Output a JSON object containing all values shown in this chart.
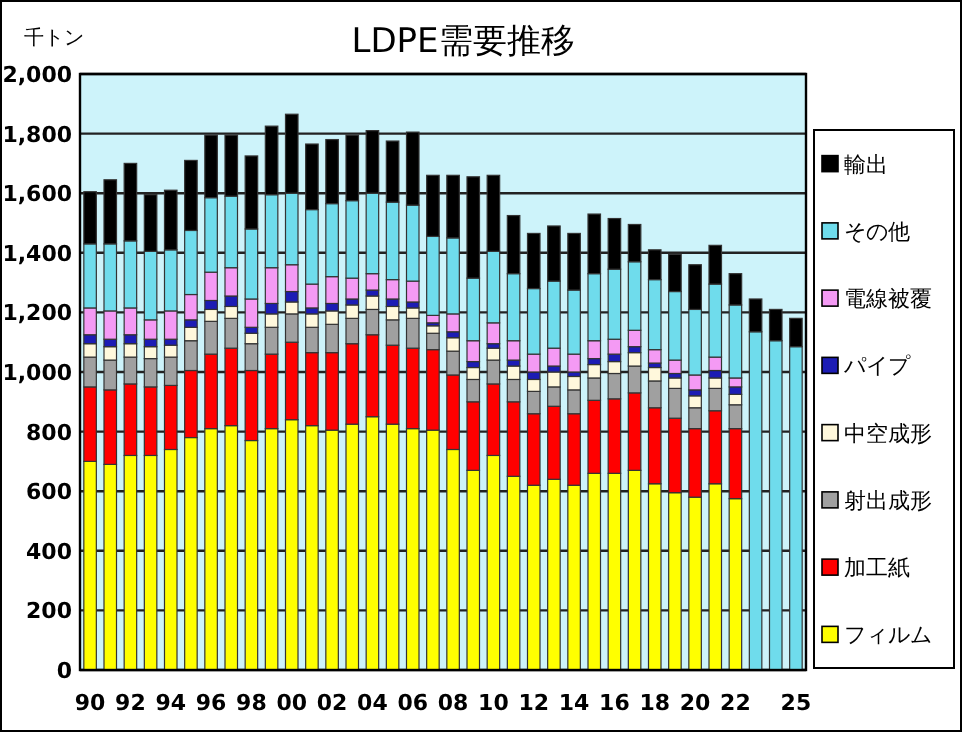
{
  "chart_data": {
    "type": "bar",
    "stacked": true,
    "title": "LDPE需要推移",
    "ylabel": "千トン",
    "categories": [
      "90",
      null,
      "92",
      null,
      "94",
      null,
      "96",
      null,
      "98",
      null,
      "00",
      null,
      "02",
      null,
      "04",
      null,
      "06",
      null,
      "08",
      null,
      "10",
      null,
      "12",
      null,
      "14",
      null,
      "16",
      null,
      "18",
      null,
      "20",
      null,
      "22",
      null,
      null,
      "25"
    ],
    "ylim": [
      0,
      2000
    ],
    "yticks": [
      {
        "value": 0,
        "label": "0"
      },
      {
        "value": 200,
        "label": "200"
      },
      {
        "value": 400,
        "label": "400"
      },
      {
        "value": 600,
        "label": "600"
      },
      {
        "value": 800,
        "label": "800"
      },
      {
        "value": 1000,
        "label": "1,000"
      },
      {
        "value": 1200,
        "label": "1,200"
      },
      {
        "value": 1400,
        "label": "1,400"
      },
      {
        "value": 1600,
        "label": "1,600"
      },
      {
        "value": 1800,
        "label": "1,800"
      },
      {
        "value": 2000,
        "label": "2,000"
      }
    ],
    "grid": "y",
    "legend": "right",
    "series": [
      {
        "name": "フィルム",
        "color": "#ffff00",
        "values": [
          700,
          690,
          720,
          720,
          740,
          780,
          810,
          820,
          770,
          810,
          840,
          820,
          805,
          825,
          850,
          825,
          810,
          805,
          740,
          670,
          720,
          650,
          620,
          640,
          620,
          660,
          660,
          670,
          625,
          595,
          580,
          625,
          575,
          null,
          null,
          null
        ]
      },
      {
        "name": "加工紙",
        "color": "#ff0000",
        "values": [
          250,
          250,
          240,
          230,
          215,
          225,
          250,
          260,
          235,
          250,
          260,
          245,
          260,
          270,
          275,
          265,
          270,
          270,
          250,
          230,
          240,
          250,
          240,
          245,
          240,
          245,
          250,
          260,
          255,
          250,
          230,
          245,
          235,
          null,
          null,
          null
        ]
      },
      {
        "name": "射出成形",
        "color": "#a0a0a0",
        "values": [
          100,
          100,
          90,
          95,
          95,
          100,
          110,
          100,
          90,
          90,
          95,
          85,
          95,
          85,
          85,
          85,
          100,
          55,
          80,
          75,
          80,
          75,
          75,
          65,
          80,
          75,
          85,
          90,
          90,
          100,
          70,
          75,
          80,
          null,
          null,
          null
        ]
      },
      {
        "name": "中空成形",
        "color": "#fff8dc",
        "values": [
          45,
          45,
          45,
          40,
          40,
          45,
          40,
          40,
          35,
          45,
          40,
          45,
          45,
          45,
          45,
          45,
          35,
          25,
          45,
          40,
          40,
          45,
          40,
          50,
          45,
          45,
          40,
          45,
          45,
          35,
          40,
          35,
          35,
          null,
          null,
          null
        ]
      },
      {
        "name": "パイプ",
        "color": "#1c1cb4",
        "values": [
          30,
          25,
          30,
          25,
          20,
          25,
          30,
          35,
          20,
          35,
          35,
          20,
          25,
          20,
          20,
          25,
          20,
          10,
          20,
          20,
          15,
          20,
          25,
          20,
          15,
          20,
          25,
          20,
          15,
          15,
          20,
          25,
          25,
          null,
          null,
          null
        ]
      },
      {
        "name": "電線被覆",
        "color": "#f49af4",
        "values": [
          90,
          95,
          90,
          65,
          95,
          85,
          95,
          95,
          95,
          120,
          90,
          80,
          90,
          70,
          55,
          65,
          70,
          25,
          60,
          70,
          70,
          65,
          60,
          60,
          60,
          60,
          50,
          55,
          45,
          45,
          50,
          45,
          30,
          null,
          null,
          null
        ]
      },
      {
        "name": "その他",
        "color": "#6fdcec",
        "values": [
          215,
          225,
          225,
          230,
          205,
          215,
          250,
          240,
          235,
          245,
          240,
          250,
          245,
          260,
          270,
          260,
          255,
          265,
          255,
          210,
          240,
          225,
          220,
          225,
          215,
          225,
          235,
          230,
          235,
          230,
          220,
          245,
          245,
          1135,
          1105,
          1085
        ]
      },
      {
        "name": "輸出",
        "color": "#000000",
        "values": [
          175,
          215,
          260,
          190,
          200,
          235,
          210,
          205,
          245,
          230,
          265,
          220,
          215,
          220,
          210,
          205,
          245,
          205,
          210,
          340,
          255,
          195,
          185,
          185,
          190,
          200,
          170,
          125,
          100,
          125,
          150,
          130,
          105,
          110,
          105,
          95
        ]
      }
    ]
  }
}
